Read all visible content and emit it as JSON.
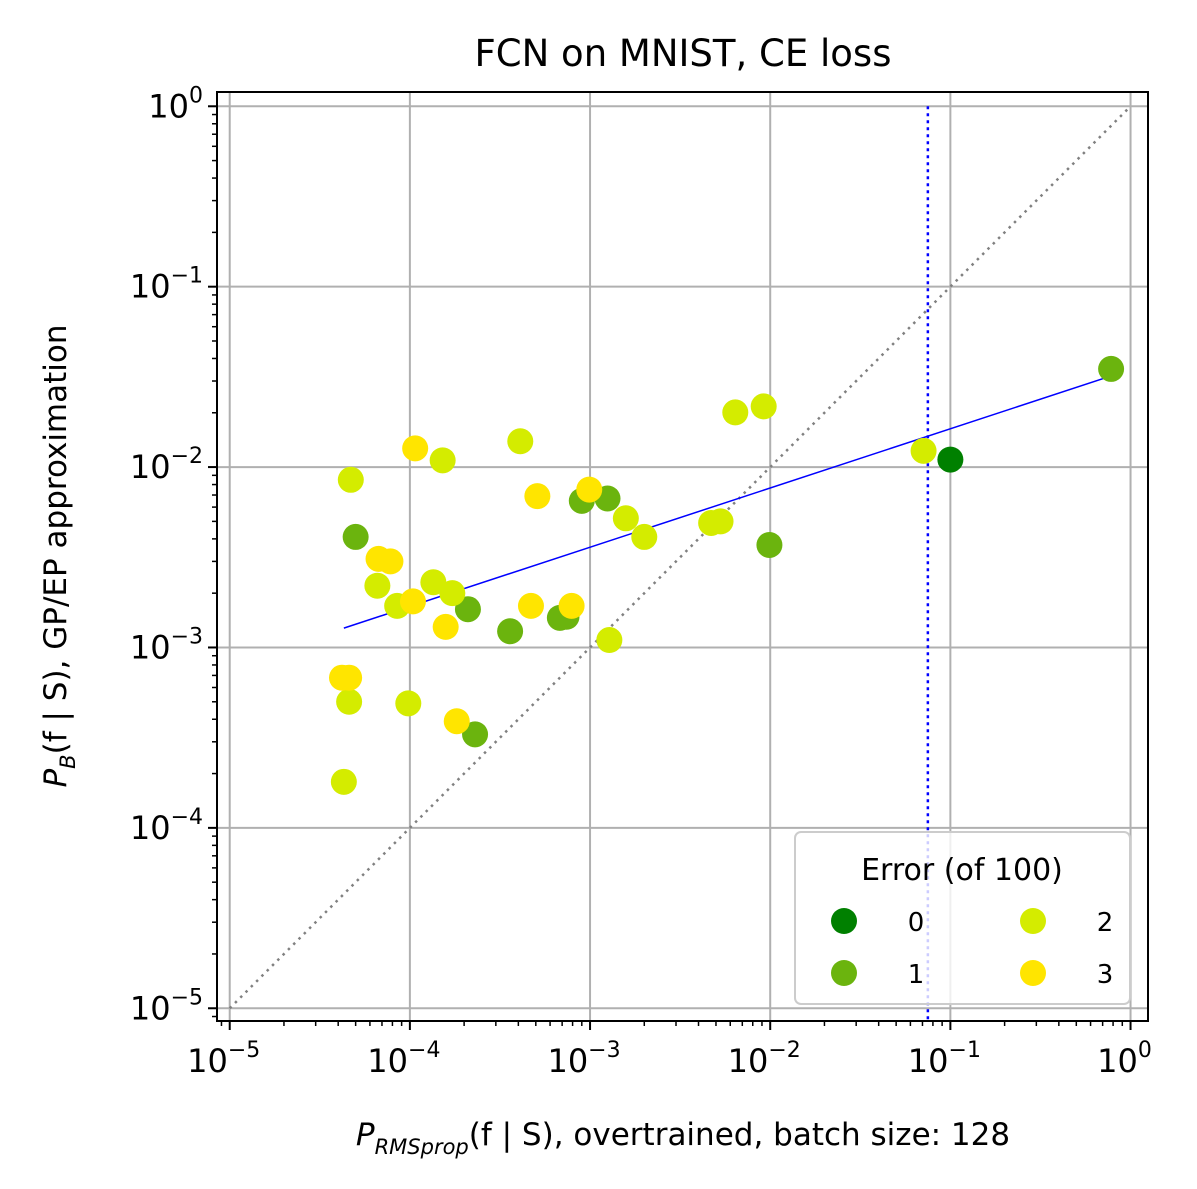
{
  "chart_data": {
    "type": "scatter",
    "title": "FCN on MNIST, CE loss",
    "xlabel": {
      "symbol": "P",
      "subscript": "RMSprop",
      "args": "(f | S)",
      "suffix": ", overtrained, batch size: 128"
    },
    "ylabel": {
      "symbol": "P",
      "subscript": "B",
      "args": "(f | S)",
      "suffix": ", GP/EP approximation"
    },
    "xscale": "log",
    "yscale": "log",
    "xlim": [
      8.5e-06,
      1.25
    ],
    "ylim": [
      8.5e-06,
      1.2
    ],
    "grid": true,
    "x_ticks": [
      {
        "base": "10",
        "exp": "−5",
        "value": 1e-05
      },
      {
        "base": "10",
        "exp": "−4",
        "value": 0.0001
      },
      {
        "base": "10",
        "exp": "−3",
        "value": 0.001
      },
      {
        "base": "10",
        "exp": "−2",
        "value": 0.01
      },
      {
        "base": "10",
        "exp": "−1",
        "value": 0.1
      },
      {
        "base": "10",
        "exp": "0",
        "value": 1
      }
    ],
    "y_ticks": [
      {
        "base": "10",
        "exp": "−5",
        "value": 1e-05
      },
      {
        "base": "10",
        "exp": "−4",
        "value": 0.0001
      },
      {
        "base": "10",
        "exp": "−3",
        "value": 0.001
      },
      {
        "base": "10",
        "exp": "−2",
        "value": 0.01
      },
      {
        "base": "10",
        "exp": "−1",
        "value": 0.1
      },
      {
        "base": "10",
        "exp": "0",
        "value": 1
      }
    ],
    "legend": {
      "title": "Error (of 100)",
      "position": "lower-right",
      "entries": [
        {
          "label": "0",
          "color": "#008000"
        },
        {
          "label": "1",
          "color": "#6bb40e"
        },
        {
          "label": "2",
          "color": "#d4ec00"
        },
        {
          "label": "3",
          "color": "#ffe500"
        }
      ]
    },
    "reference_lines": {
      "diagonal": {
        "from": [
          1e-05,
          1e-05
        ],
        "to": [
          1,
          1
        ],
        "color": "#808080",
        "style": "dotted"
      },
      "vertical": {
        "x": 0.075,
        "color": "#0000ff",
        "style": "dotted"
      },
      "fit": {
        "from": [
          4.3e-05,
          0.00128
        ],
        "to": [
          0.78,
          0.032
        ],
        "color": "#0000ff",
        "style": "solid"
      }
    },
    "series": [
      {
        "name": "0",
        "color": "#008000",
        "points": [
          [
            0.1,
            0.011
          ]
        ]
      },
      {
        "name": "1",
        "color": "#6bb40e",
        "points": [
          [
            5e-05,
            0.0041
          ],
          [
            0.00021,
            0.00163
          ],
          [
            0.00023,
            0.00033
          ],
          [
            0.00036,
            0.00123
          ],
          [
            0.00068,
            0.00146
          ],
          [
            0.00074,
            0.00148
          ],
          [
            0.0009,
            0.0065
          ],
          [
            0.00125,
            0.0067
          ],
          [
            0.0099,
            0.0037
          ],
          [
            0.78,
            0.035
          ]
        ]
      },
      {
        "name": "2",
        "color": "#d4ec00",
        "points": [
          [
            4.3e-05,
            0.00018
          ],
          [
            4.6e-05,
            0.0005
          ],
          [
            4.7e-05,
            0.0085
          ],
          [
            6.6e-05,
            0.0022
          ],
          [
            8.5e-05,
            0.0017
          ],
          [
            9.8e-05,
            0.00049
          ],
          [
            0.000135,
            0.0023
          ],
          [
            0.000152,
            0.0109
          ],
          [
            0.000172,
            0.002
          ],
          [
            0.00041,
            0.0139
          ],
          [
            0.00128,
            0.0011
          ],
          [
            0.00158,
            0.0052
          ],
          [
            0.002,
            0.0041
          ],
          [
            0.0047,
            0.0049
          ],
          [
            0.0053,
            0.005
          ],
          [
            0.0064,
            0.0201
          ],
          [
            0.0092,
            0.0217
          ],
          [
            0.071,
            0.0123
          ]
        ]
      },
      {
        "name": "3",
        "color": "#ffe500",
        "points": [
          [
            4.2e-05,
            0.00068
          ],
          [
            4.6e-05,
            0.00068
          ],
          [
            6.7e-05,
            0.0031
          ],
          [
            7.8e-05,
            0.003
          ],
          [
            0.000104,
            0.0018
          ],
          [
            0.000107,
            0.0127
          ],
          [
            0.000158,
            0.0013
          ],
          [
            0.000182,
            0.00039
          ],
          [
            0.00047,
            0.0017
          ],
          [
            0.00051,
            0.0069
          ],
          [
            0.00079,
            0.0017
          ],
          [
            0.00099,
            0.0075
          ]
        ]
      }
    ]
  }
}
